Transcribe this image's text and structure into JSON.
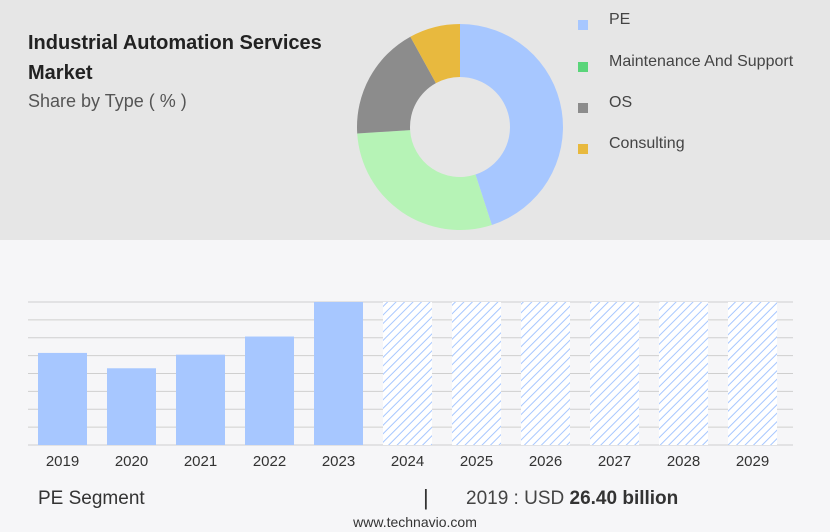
{
  "header": {
    "title": "Industrial Automation Services Market",
    "subtitle": "Share by Type ( % )"
  },
  "colors": {
    "pe": "#a7c7ff",
    "maintenance": "#b6f3b6",
    "os": "#8c8c8c",
    "consulting": "#e8b93e",
    "legend_pe": "#a7c7ff",
    "legend_maintenance": "#5ad57a",
    "legend_os": "#8c8c8c",
    "legend_consulting": "#e8b93e",
    "forecast_hatch": "#a7c7ff",
    "grid": "#cfcfcf"
  },
  "chart_data": [
    {
      "type": "pie",
      "donut": true,
      "title": "Share by Type ( % )",
      "categories": [
        "PE",
        "Maintenance And Support",
        "OS",
        "Consulting"
      ],
      "values": [
        45,
        29,
        18,
        8
      ],
      "legend_position": "right"
    },
    {
      "type": "bar",
      "categories": [
        "2019",
        "2020",
        "2021",
        "2022",
        "2023",
        "2024",
        "2025",
        "2026",
        "2027",
        "2028",
        "2029"
      ],
      "values": [
        26.4,
        22.0,
        25.9,
        31.1,
        41.0,
        41.0,
        41.0,
        41.0,
        41.0,
        41.0,
        41.0
      ],
      "forecast_from": "2024",
      "ylim": [
        0,
        41
      ],
      "grid": true
    }
  ],
  "footer": {
    "segment": "PE Segment",
    "separator": "|",
    "value_prefix": "2019 : USD",
    "value_bold": "26.40 billion",
    "source": "www.technavio.com"
  }
}
